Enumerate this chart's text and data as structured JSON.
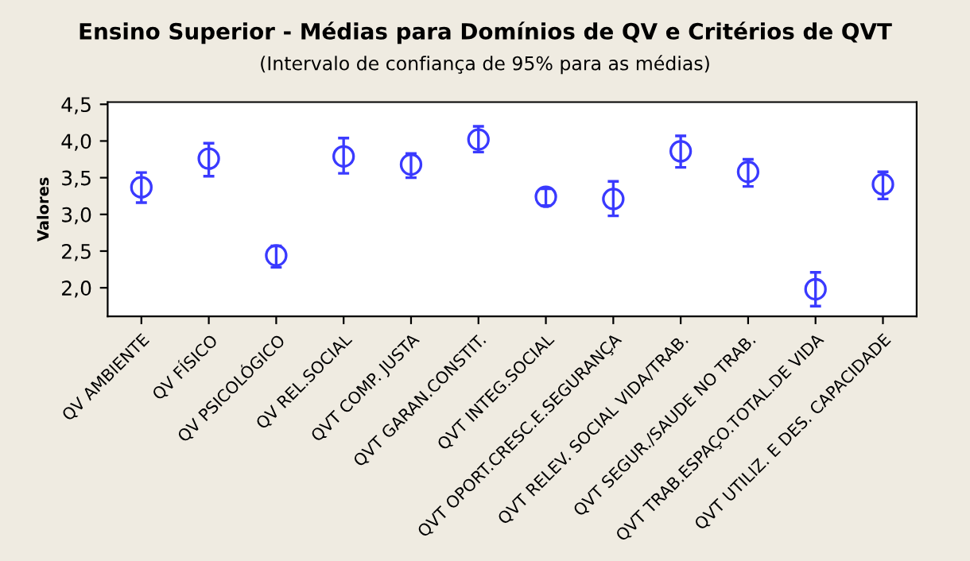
{
  "chart_data": {
    "type": "scatter",
    "title": "Ensino Superior - Médias para Domínios de QV e Critérios de QVT",
    "subtitle": "(Intervalo de confiança de 95% para as médias)",
    "ylabel": "Valores",
    "categories": [
      "QV AMBIENTE",
      "QV FÍSICO",
      "QV PSICOLÓGICO",
      "QV REL.SOCIAL",
      "QVT COMP. JUSTA",
      "QVT GARAN.CONSTIT.",
      "QVT INTEG.SOCIAL",
      "QVT OPORT.CRESC.E.SEGURANÇA",
      "QVT RELEV. SOCIAL VIDA/TRAB.",
      "QVT SEGUR./SAUDE NO TRAB.",
      "QVT TRAB.ESPAÇO.TOTAL.DE VIDA",
      "QVT UTILIZ. E DES. CAPACIDADE"
    ],
    "values": [
      3.37,
      3.76,
      2.44,
      3.79,
      3.68,
      4.02,
      3.24,
      3.21,
      3.86,
      3.58,
      1.98,
      3.41
    ],
    "errors": [
      [
        3.16,
        3.57
      ],
      [
        3.52,
        3.97
      ],
      [
        2.28,
        2.57
      ],
      [
        3.56,
        4.04
      ],
      [
        3.5,
        3.83
      ],
      [
        3.85,
        4.2
      ],
      [
        3.12,
        3.35
      ],
      [
        2.98,
        3.45
      ],
      [
        3.64,
        4.07
      ],
      [
        3.38,
        3.75
      ],
      [
        1.75,
        2.21
      ],
      [
        3.21,
        3.58
      ]
    ],
    "color": "#3a3aff",
    "marker": "circle",
    "ylim": [
      1.61,
      4.53
    ],
    "yticks": [
      {
        "value": 2.0,
        "label": "2,0"
      },
      {
        "value": 2.5,
        "label": "2,5"
      },
      {
        "value": 3.0,
        "label": "3,0"
      },
      {
        "value": 3.5,
        "label": "3,5"
      },
      {
        "value": 4.0,
        "label": "4,0"
      },
      {
        "value": 4.5,
        "label": "4,5"
      }
    ],
    "grid": false,
    "legend": false
  }
}
